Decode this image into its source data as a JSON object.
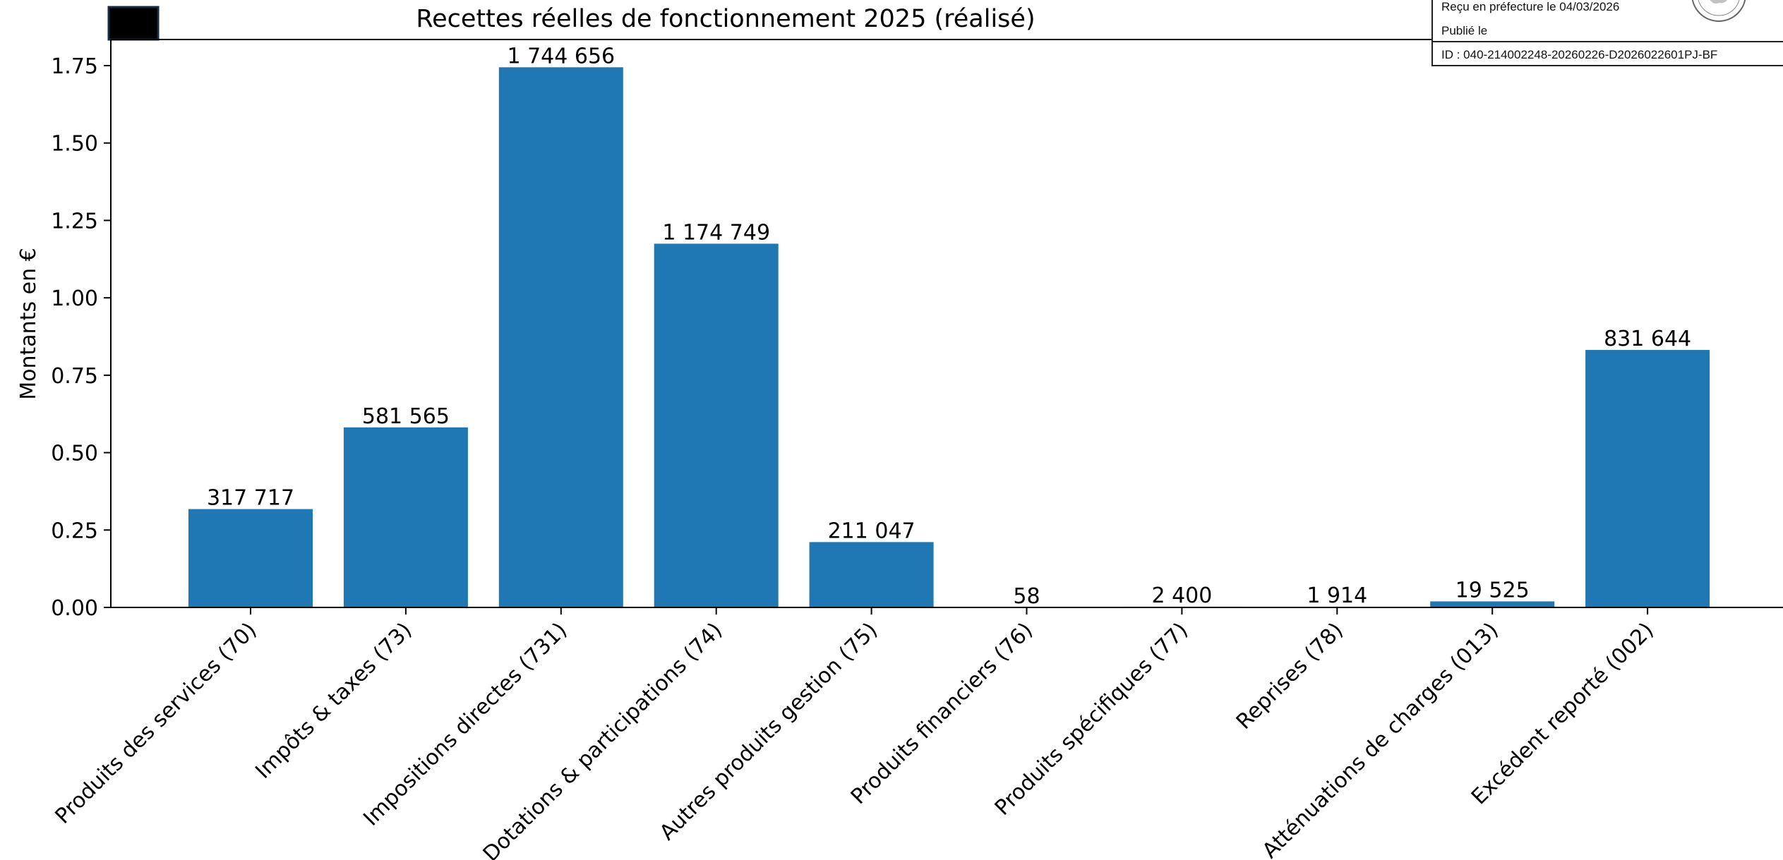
{
  "stamp": {
    "received_line": "Reçu en préfecture le 04/03/2026",
    "published_line": "Publié le",
    "id_line": "ID : 040-214002248-20260226-D2026022601PJ-BF"
  },
  "chart_data": {
    "type": "bar",
    "title": "Recettes réelles de fonctionnement 2025 (réalisé)",
    "xlabel": "",
    "ylabel": "Montants en €",
    "ylim": [
      0,
      1.85
    ],
    "yticks": [
      "0.00",
      "0.25",
      "0.50",
      "0.75",
      "1.00",
      "1.25",
      "1.50",
      "1.75"
    ],
    "categories": [
      "Produits des services (70)",
      "Impôts & taxes (73)",
      "Impositions directes (731)",
      "Dotations & participations (74)",
      "Autres produits gestion (75)",
      "Produits financiers (76)",
      "Produits spécifiques (77)",
      "Reprises (78)",
      "Atténuations de charges (013)",
      "Excédent reporté (002)"
    ],
    "values": [
      317717,
      581565,
      1744656,
      1174749,
      211047,
      58,
      2400,
      1914,
      19525,
      831644
    ],
    "value_labels": [
      "317 717",
      "581 565",
      "1 744 656",
      "1 174 749",
      "211 047",
      "58",
      "2 400",
      "1 914",
      "19 525",
      "831 644"
    ],
    "scale_factor": 1000000,
    "bar_color": "#1f77b4",
    "grid": false,
    "legend": "none"
  }
}
